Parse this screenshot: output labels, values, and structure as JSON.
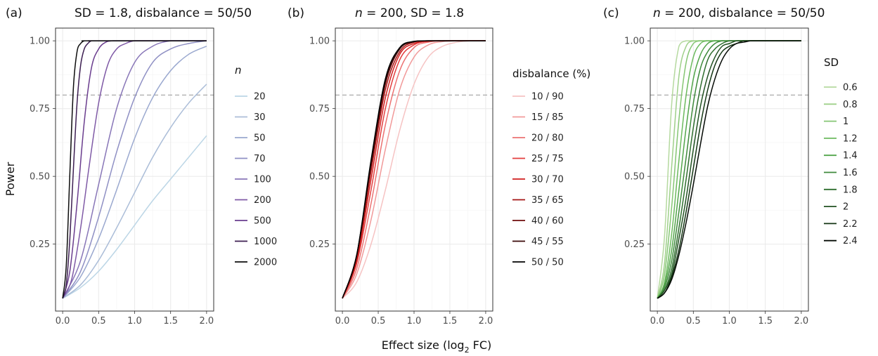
{
  "figure": {
    "x_axis_title_prefix": "Effect size (log",
    "x_axis_title_sub": "2",
    "x_axis_title_suffix": " FC)",
    "y_axis_title": "Power"
  },
  "chart_data": [
    {
      "type": "line",
      "tag": "(a)",
      "title": "SD = 1.8, disbalance = 50/50",
      "xlabel": "Effect size (log2 FC)",
      "ylabel": "Power",
      "xlim": [
        0,
        2
      ],
      "ylim": [
        0.05,
        1
      ],
      "x_ticks": [
        "0.0",
        "0.5",
        "1.0",
        "1.5",
        "2.0"
      ],
      "y_ticks": [
        "0.25",
        "0.50",
        "0.75",
        "1.00"
      ],
      "reference_line": {
        "y": 0.8,
        "style": "dashed",
        "color": "#a9a9a9"
      },
      "legend_title": "n",
      "legend_title_italic": true,
      "legend_position": "right",
      "series": [
        {
          "name": "20",
          "color": "#bcd6e6",
          "x": [
            0,
            0.25,
            0.5,
            0.75,
            1.0,
            1.25,
            1.5,
            1.75,
            2.0
          ],
          "values": [
            0.05,
            0.09,
            0.15,
            0.23,
            0.32,
            0.41,
            0.49,
            0.57,
            0.65
          ]
        },
        {
          "name": "30",
          "color": "#abbdd8",
          "x": [
            0,
            0.25,
            0.5,
            0.75,
            1.0,
            1.25,
            1.5,
            1.75,
            2.0
          ],
          "values": [
            0.05,
            0.1,
            0.19,
            0.31,
            0.44,
            0.57,
            0.68,
            0.77,
            0.84
          ]
        },
        {
          "name": "50",
          "color": "#9aa8cf",
          "x": [
            0,
            0.25,
            0.5,
            0.75,
            1.0,
            1.25,
            1.5,
            1.75,
            2.0
          ],
          "values": [
            0.05,
            0.13,
            0.27,
            0.45,
            0.64,
            0.79,
            0.89,
            0.95,
            0.98
          ]
        },
        {
          "name": "70",
          "color": "#8f90c4",
          "x": [
            0,
            0.25,
            0.5,
            0.75,
            1.0,
            1.25,
            1.5,
            1.75,
            2.0
          ],
          "values": [
            0.05,
            0.15,
            0.35,
            0.59,
            0.79,
            0.92,
            0.97,
            0.99,
            1.0
          ]
        },
        {
          "name": "100",
          "color": "#8977b8",
          "x": [
            0,
            0.25,
            0.5,
            0.75,
            1.0,
            1.25,
            1.5,
            1.75,
            2.0
          ],
          "values": [
            0.05,
            0.19,
            0.47,
            0.75,
            0.92,
            0.98,
            1.0,
            1.0,
            1.0
          ]
        },
        {
          "name": "200",
          "color": "#7f5aa6",
          "x": [
            0,
            0.125,
            0.25,
            0.375,
            0.5,
            0.625,
            0.75,
            0.875,
            1.0,
            1.25,
            1.5,
            2.0
          ],
          "values": [
            0.05,
            0.12,
            0.31,
            0.55,
            0.77,
            0.91,
            0.97,
            0.99,
            1.0,
            1.0,
            1.0,
            1.0
          ]
        },
        {
          "name": "500",
          "color": "#6a3d8e",
          "x": [
            0,
            0.1,
            0.2,
            0.3,
            0.4,
            0.5,
            0.6,
            0.7,
            0.8,
            1.0,
            2.0
          ],
          "values": [
            0.05,
            0.15,
            0.4,
            0.7,
            0.9,
            0.97,
            0.995,
            1.0,
            1.0,
            1.0,
            1.0
          ]
        },
        {
          "name": "1000",
          "color": "#3d1f52",
          "x": [
            0,
            0.05,
            0.1,
            0.15,
            0.2,
            0.25,
            0.3,
            0.35,
            0.4,
            0.5,
            2.0
          ],
          "values": [
            0.05,
            0.1,
            0.27,
            0.53,
            0.77,
            0.91,
            0.97,
            0.99,
            1.0,
            1.0,
            1.0
          ]
        },
        {
          "name": "2000",
          "color": "#0d0d0d",
          "x": [
            0,
            0.05,
            0.1,
            0.15,
            0.2,
            0.25,
            0.3,
            0.35,
            0.4,
            2.0
          ],
          "values": [
            0.05,
            0.17,
            0.51,
            0.83,
            0.96,
            0.99,
            1.0,
            1.0,
            1.0,
            1.0
          ]
        }
      ]
    },
    {
      "type": "line",
      "tag": "(b)",
      "title": "n = 200, SD = 1.8",
      "title_italic_prefix": "n",
      "title_rest": " = 200, SD = 1.8",
      "xlabel": "Effect size (log2 FC)",
      "ylabel": "Power",
      "xlim": [
        0,
        2
      ],
      "ylim": [
        0.05,
        1
      ],
      "x_ticks": [
        "0.0",
        "0.5",
        "1.0",
        "1.5",
        "2.0"
      ],
      "y_ticks": [
        "0.25",
        "0.50",
        "0.75",
        "1.00"
      ],
      "reference_line": {
        "y": 0.8,
        "style": "dashed",
        "color": "#a9a9a9"
      },
      "legend_title": "disbalance (%)",
      "legend_title_italic": false,
      "legend_position": "right",
      "series": [
        {
          "name": "10 / 90",
          "color": "#f6c3c3",
          "x": [
            0,
            0.2,
            0.4,
            0.6,
            0.8,
            1.0,
            1.2,
            1.4,
            1.6,
            1.8,
            2.0
          ],
          "values": [
            0.05,
            0.11,
            0.25,
            0.45,
            0.67,
            0.84,
            0.94,
            0.98,
            0.995,
            1.0,
            1.0
          ]
        },
        {
          "name": "15 / 85",
          "color": "#f19a9a",
          "x": [
            0,
            0.2,
            0.4,
            0.6,
            0.8,
            1.0,
            1.2,
            1.4,
            1.6,
            1.8,
            2.0
          ],
          "values": [
            0.05,
            0.14,
            0.34,
            0.6,
            0.82,
            0.94,
            0.985,
            0.997,
            1.0,
            1.0,
            1.0
          ]
        },
        {
          "name": "20 / 80",
          "color": "#ec7272",
          "x": [
            0,
            0.2,
            0.4,
            0.6,
            0.8,
            1.0,
            1.2,
            1.4,
            1.6,
            2.0
          ],
          "values": [
            0.05,
            0.16,
            0.4,
            0.69,
            0.89,
            0.975,
            0.995,
            1.0,
            1.0,
            1.0
          ]
        },
        {
          "name": "25 / 75",
          "color": "#e33d3d",
          "x": [
            0,
            0.2,
            0.4,
            0.6,
            0.8,
            1.0,
            1.2,
            1.4,
            2.0
          ],
          "values": [
            0.05,
            0.18,
            0.45,
            0.75,
            0.93,
            0.985,
            0.998,
            1.0,
            1.0
          ]
        },
        {
          "name": "30 / 70",
          "color": "#d01d1d",
          "x": [
            0,
            0.2,
            0.4,
            0.6,
            0.8,
            1.0,
            1.2,
            1.4,
            2.0
          ],
          "values": [
            0.05,
            0.19,
            0.49,
            0.79,
            0.95,
            0.99,
            0.999,
            1.0,
            1.0
          ]
        },
        {
          "name": "35 / 65",
          "color": "#a51414",
          "x": [
            0,
            0.2,
            0.4,
            0.6,
            0.8,
            1.0,
            1.2,
            2.0
          ],
          "values": [
            0.05,
            0.2,
            0.52,
            0.82,
            0.96,
            0.995,
            1.0,
            1.0
          ]
        },
        {
          "name": "40 / 60",
          "color": "#6e0c0c",
          "x": [
            0,
            0.2,
            0.4,
            0.6,
            0.8,
            1.0,
            1.2,
            2.0
          ],
          "values": [
            0.05,
            0.21,
            0.54,
            0.84,
            0.97,
            0.996,
            1.0,
            1.0
          ]
        },
        {
          "name": "45 / 55",
          "color": "#3a0808",
          "x": [
            0,
            0.2,
            0.4,
            0.6,
            0.8,
            1.0,
            1.2,
            2.0
          ],
          "values": [
            0.05,
            0.21,
            0.55,
            0.85,
            0.97,
            0.997,
            1.0,
            1.0
          ]
        },
        {
          "name": "50 / 50",
          "color": "#000000",
          "x": [
            0,
            0.2,
            0.4,
            0.6,
            0.8,
            1.0,
            1.2,
            2.0
          ],
          "values": [
            0.05,
            0.21,
            0.56,
            0.86,
            0.975,
            0.998,
            1.0,
            1.0
          ]
        }
      ]
    },
    {
      "type": "line",
      "tag": "(c)",
      "title": "n = 200, disbalance = 50/50",
      "title_italic_prefix": "n",
      "title_rest": " = 200, disbalance = 50/50",
      "xlabel": "Effect size (log2 FC)",
      "ylabel": "Power",
      "xlim": [
        0,
        2
      ],
      "ylim": [
        0.05,
        1
      ],
      "x_ticks": [
        "0.0",
        "0.5",
        "1.0",
        "1.5",
        "2.0"
      ],
      "y_ticks": [
        "0.25",
        "0.50",
        "0.75",
        "1.00"
      ],
      "reference_line": {
        "y": 0.8,
        "style": "dashed",
        "color": "#a9a9a9"
      },
      "legend_title": "SD",
      "legend_title_italic": false,
      "legend_position": "right",
      "series": [
        {
          "name": "0.6",
          "color": "#b5d99f",
          "x": [
            0,
            0.1,
            0.2,
            0.3,
            0.4,
            0.5,
            0.6,
            2.0
          ],
          "values": [
            0.05,
            0.28,
            0.77,
            0.98,
            1.0,
            1.0,
            1.0,
            1.0
          ]
        },
        {
          "name": "0.8",
          "color": "#9fd08a",
          "x": [
            0,
            0.1,
            0.2,
            0.3,
            0.4,
            0.5,
            0.6,
            2.0
          ],
          "values": [
            0.05,
            0.18,
            0.54,
            0.87,
            0.98,
            1.0,
            1.0,
            1.0
          ]
        },
        {
          "name": "1",
          "color": "#86c674",
          "x": [
            0,
            0.1,
            0.2,
            0.3,
            0.4,
            0.5,
            0.6,
            0.7,
            2.0
          ],
          "values": [
            0.05,
            0.14,
            0.39,
            0.71,
            0.92,
            0.99,
            1.0,
            1.0,
            1.0
          ]
        },
        {
          "name": "1.2",
          "color": "#6cba5e",
          "x": [
            0,
            0.1,
            0.2,
            0.3,
            0.4,
            0.5,
            0.6,
            0.7,
            0.8,
            2.0
          ],
          "values": [
            0.05,
            0.11,
            0.29,
            0.56,
            0.8,
            0.94,
            0.99,
            1.0,
            1.0,
            1.0
          ]
        },
        {
          "name": "1.4",
          "color": "#52a54a",
          "x": [
            0,
            0.1,
            0.2,
            0.3,
            0.4,
            0.5,
            0.6,
            0.7,
            0.8,
            0.9,
            2.0
          ],
          "values": [
            0.05,
            0.1,
            0.23,
            0.45,
            0.68,
            0.86,
            0.95,
            0.99,
            1.0,
            1.0,
            1.0
          ]
        },
        {
          "name": "1.6",
          "color": "#3e8a3b",
          "x": [
            0,
            0.1,
            0.2,
            0.3,
            0.4,
            0.5,
            0.6,
            0.7,
            0.8,
            0.9,
            1.0,
            2.0
          ],
          "values": [
            0.05,
            0.09,
            0.19,
            0.37,
            0.57,
            0.77,
            0.9,
            0.96,
            0.99,
            1.0,
            1.0,
            1.0
          ]
        },
        {
          "name": "1.8",
          "color": "#2f6e2e",
          "x": [
            0,
            0.1,
            0.2,
            0.3,
            0.4,
            0.5,
            0.6,
            0.7,
            0.8,
            0.9,
            1.0,
            1.1,
            2.0
          ],
          "values": [
            0.05,
            0.08,
            0.16,
            0.31,
            0.49,
            0.68,
            0.83,
            0.93,
            0.97,
            0.99,
            1.0,
            1.0,
            1.0
          ]
        },
        {
          "name": "2",
          "color": "#225222",
          "x": [
            0,
            0.1,
            0.2,
            0.3,
            0.4,
            0.5,
            0.6,
            0.7,
            0.8,
            0.9,
            1.0,
            1.1,
            1.2,
            2.0
          ],
          "values": [
            0.05,
            0.08,
            0.14,
            0.27,
            0.42,
            0.6,
            0.76,
            0.87,
            0.94,
            0.98,
            0.99,
            1.0,
            1.0,
            1.0
          ]
        },
        {
          "name": "2.2",
          "color": "#143614",
          "x": [
            0,
            0.1,
            0.2,
            0.3,
            0.4,
            0.5,
            0.6,
            0.7,
            0.8,
            0.9,
            1.0,
            1.1,
            1.2,
            1.3,
            2.0
          ],
          "values": [
            0.05,
            0.07,
            0.13,
            0.23,
            0.37,
            0.53,
            0.69,
            0.82,
            0.91,
            0.96,
            0.98,
            0.99,
            1.0,
            1.0,
            1.0
          ]
        },
        {
          "name": "2.4",
          "color": "#050a05",
          "x": [
            0,
            0.1,
            0.2,
            0.3,
            0.4,
            0.5,
            0.6,
            0.7,
            0.8,
            0.9,
            1.0,
            1.1,
            1.2,
            1.3,
            1.4,
            2.0
          ],
          "values": [
            0.05,
            0.07,
            0.12,
            0.21,
            0.33,
            0.47,
            0.62,
            0.76,
            0.86,
            0.93,
            0.97,
            0.99,
            0.995,
            1.0,
            1.0,
            1.0
          ]
        }
      ]
    }
  ]
}
